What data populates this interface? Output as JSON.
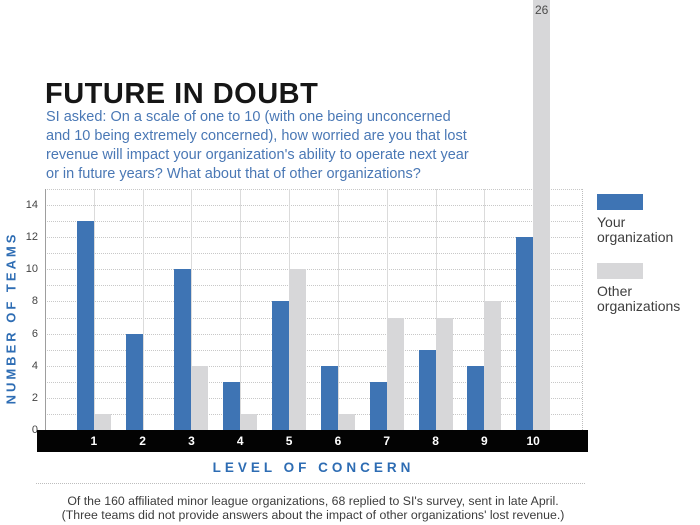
{
  "title": "FUTURE IN DOUBT",
  "subtitle": "SI asked: On a scale of one to 10 (with one being unconcerned and 10 being extremely concerned), how worried are you that lost revenue will impact your organization's ability to operate next year or in future years? What about that of other organizations?",
  "chart_data": {
    "type": "bar",
    "title": "FUTURE IN DOUBT",
    "categories": [
      "1",
      "2",
      "3",
      "4",
      "5",
      "6",
      "7",
      "8",
      "9",
      "10"
    ],
    "series": [
      {
        "name": "Your organization",
        "color": "#3E74B4",
        "values": [
          13,
          6,
          10,
          3,
          8,
          4,
          3,
          5,
          4,
          12
        ]
      },
      {
        "name": "Other organizations",
        "color": "#D7D7D9",
        "values": [
          1,
          0,
          4,
          1,
          10,
          1,
          7,
          7,
          8,
          26
        ]
      }
    ],
    "xlabel": "LEVEL OF CONCERN",
    "ylabel": "NUMBER OF TEAMS",
    "ylim": [
      0,
      15
    ],
    "ytick_step": 2,
    "ytick_max_label": 14,
    "grid": true,
    "legend_position": "right",
    "overflow_bar": {
      "category": "10",
      "series": "Other organizations",
      "label": "26"
    }
  },
  "legend": {
    "items": [
      {
        "label": "Your organization",
        "color": "#3E74B4"
      },
      {
        "label": "Other organizations",
        "color": "#D7D7D9"
      }
    ]
  },
  "footnote_lines": [
    "Of the 160 affiliated minor league organizations, 68 replied to SI's survey, sent in late April.",
    "(Three teams did not provide answers about the impact of other organizations' lost revenue.)"
  ],
  "colors": {
    "bar_blue": "#3E74B4",
    "bar_gray": "#D7D7D9",
    "text_blue": "#4A78B5",
    "axis_title_blue": "#2D6CB3",
    "axis_band_black": "#030303",
    "note_text": "#3C3C3C"
  }
}
